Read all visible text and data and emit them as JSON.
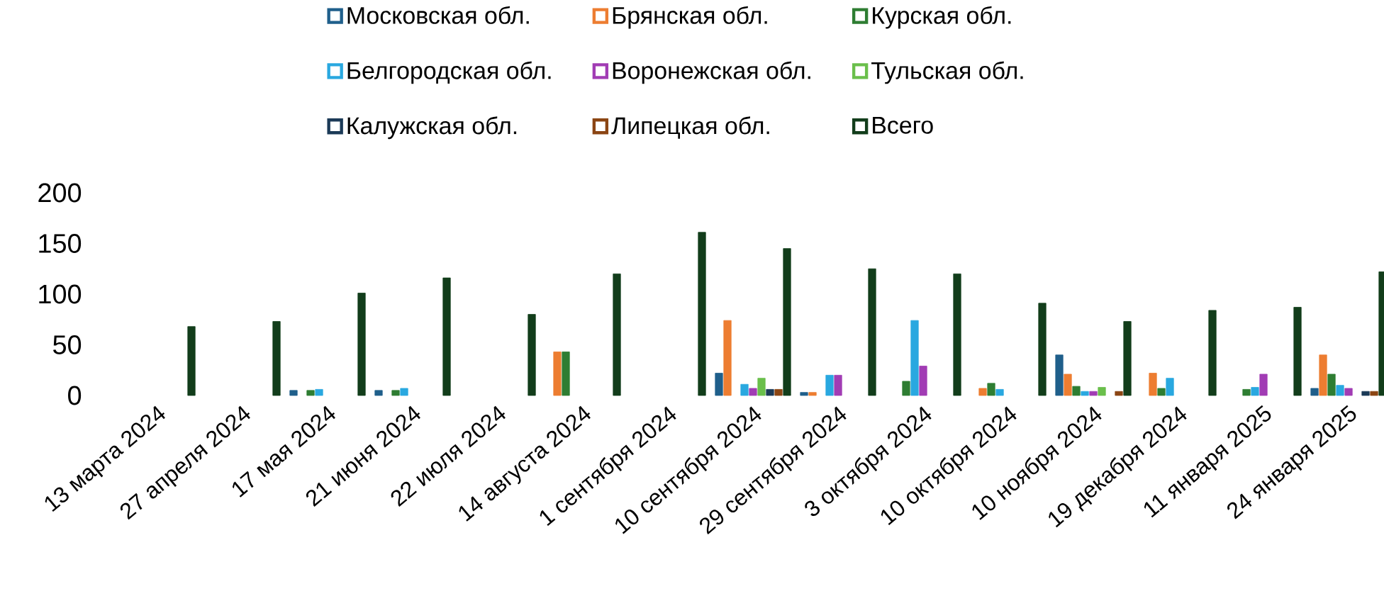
{
  "chart_data": {
    "type": "bar",
    "categories": [
      "13 марта 2024",
      "27 апреля 2024",
      "17 мая 2024",
      "21 июня 2024",
      "22 июля 2024",
      "14 августа 2024",
      "1 сентября 2024",
      "10 сентября 2024",
      "29 сентября 2024",
      "3 октября 2024",
      "10 октября 2024",
      "10 ноября 2024",
      "19 декабря 2024",
      "11 января 2025",
      "24 января 2025"
    ],
    "series": [
      {
        "name": "Московская обл.",
        "color": "#1f5f8b",
        "values": [
          null,
          null,
          5,
          5,
          null,
          null,
          null,
          22,
          3,
          null,
          null,
          40,
          null,
          null,
          7
        ]
      },
      {
        "name": "Брянская обл.",
        "color": "#ed7d31",
        "values": [
          null,
          null,
          null,
          null,
          null,
          43,
          null,
          74,
          3,
          null,
          7,
          21,
          22,
          null,
          40
        ]
      },
      {
        "name": "Курская обл.",
        "color": "#2e7d32",
        "values": [
          null,
          null,
          5,
          5,
          null,
          43,
          null,
          null,
          null,
          14,
          12,
          9,
          7,
          6,
          21
        ]
      },
      {
        "name": "Белгородская обл.",
        "color": "#29a8e0",
        "values": [
          null,
          null,
          6,
          7,
          null,
          null,
          null,
          11,
          20,
          74,
          6,
          4,
          17,
          8,
          10
        ]
      },
      {
        "name": "Воронежская обл.",
        "color": "#a13cb4",
        "values": [
          null,
          null,
          null,
          null,
          null,
          null,
          null,
          7,
          20,
          29,
          null,
          4,
          null,
          21,
          7
        ]
      },
      {
        "name": "Тульская обл.",
        "color": "#6abf4b",
        "values": [
          null,
          null,
          null,
          null,
          null,
          null,
          null,
          17,
          null,
          null,
          null,
          8,
          null,
          null,
          null
        ]
      },
      {
        "name": "Калужская обл.",
        "color": "#1b3a57",
        "values": [
          null,
          null,
          null,
          null,
          null,
          null,
          null,
          6,
          null,
          null,
          null,
          null,
          null,
          null,
          4
        ]
      },
      {
        "name": "Липецкая обл.",
        "color": "#8b4513",
        "values": [
          null,
          null,
          null,
          null,
          null,
          null,
          null,
          6,
          null,
          null,
          null,
          4,
          null,
          null,
          4
        ]
      },
      {
        "name": "Всего",
        "color": "#123d1b",
        "values": [
          68,
          73,
          101,
          116,
          80,
          120,
          161,
          145,
          125,
          120,
          91,
          73,
          84,
          87,
          122
        ]
      }
    ],
    "ylim": [
      0,
      200
    ],
    "yticks": [
      0,
      50,
      100,
      150,
      200
    ],
    "grid": false,
    "legend": "top"
  }
}
